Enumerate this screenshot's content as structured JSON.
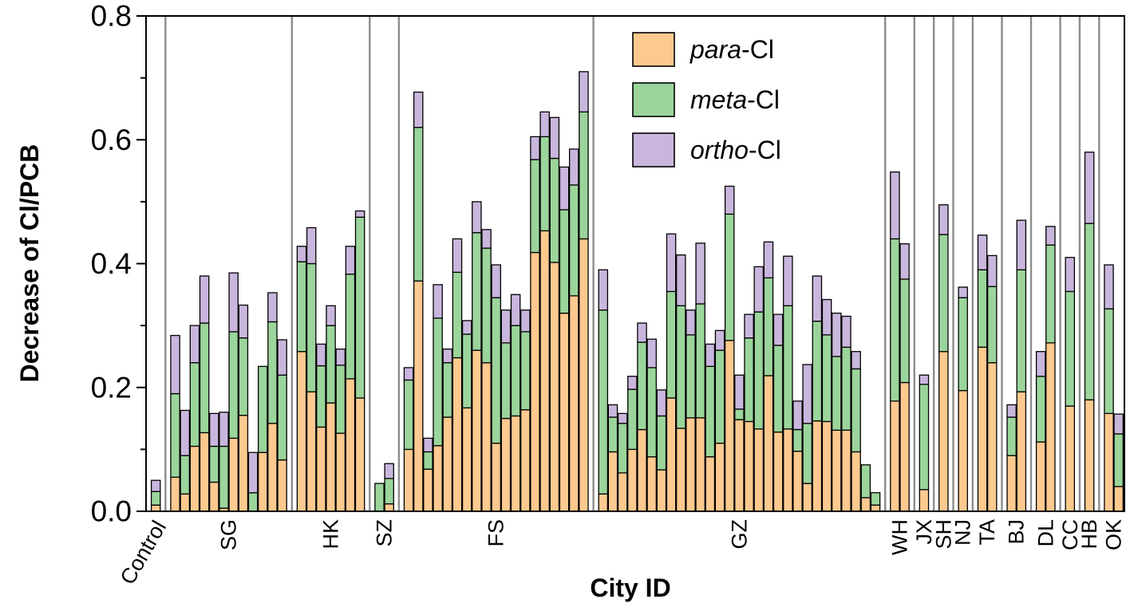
{
  "chart_data": {
    "type": "bar",
    "stacked": true,
    "xlabel": "City ID",
    "ylabel": "Decrease of Cl/PCB",
    "ylim": [
      0,
      0.8
    ],
    "yticks": [
      "0.0",
      "0.2",
      "0.4",
      "0.6",
      "0.8"
    ],
    "colors": {
      "para": "#fcc98f",
      "meta": "#9bd59b",
      "ortho": "#c9b6dd"
    },
    "legend": [
      {
        "key": "para",
        "italic": "para",
        "suffix": "-Cl"
      },
      {
        "key": "meta",
        "italic": "meta",
        "suffix": "-Cl"
      },
      {
        "key": "ortho",
        "italic": "ortho",
        "suffix": "-Cl"
      }
    ],
    "groups": [
      {
        "name": "Control",
        "bars": [
          [
            0.01,
            0.032,
            0.05
          ]
        ]
      },
      {
        "name": "SG",
        "bars": [
          [
            0.055,
            0.19,
            0.284
          ],
          [
            0.028,
            0.09,
            0.163
          ],
          [
            0.105,
            0.24,
            0.3
          ],
          [
            0.127,
            0.304,
            0.38
          ],
          [
            0.047,
            0.105,
            0.158
          ],
          [
            0.005,
            0.105,
            0.16
          ],
          [
            0.118,
            0.29,
            0.385
          ],
          [
            0.155,
            0.28,
            0.333
          ],
          [
            0.0,
            0.03,
            0.095
          ],
          [
            0.095,
            0.234,
            0.234
          ],
          [
            0.142,
            0.306,
            0.353
          ],
          [
            0.083,
            0.22,
            0.277
          ]
        ]
      },
      {
        "name": "HK",
        "bars": [
          [
            0.258,
            0.403,
            0.428
          ],
          [
            0.193,
            0.4,
            0.458
          ],
          [
            0.136,
            0.235,
            0.27
          ],
          [
            0.175,
            0.3,
            0.332
          ],
          [
            0.126,
            0.236,
            0.262
          ],
          [
            0.214,
            0.383,
            0.428
          ],
          [
            0.183,
            0.475,
            0.485
          ]
        ]
      },
      {
        "name": "SZ",
        "bars": [
          [
            0.0,
            0.045,
            0.045
          ],
          [
            0.012,
            0.053,
            0.077
          ]
        ]
      },
      {
        "name": "FS",
        "bars": [
          [
            0.1,
            0.212,
            0.232
          ],
          [
            0.372,
            0.62,
            0.677
          ],
          [
            0.068,
            0.096,
            0.118
          ],
          [
            0.106,
            0.312,
            0.366
          ],
          [
            0.152,
            0.24,
            0.262
          ],
          [
            0.248,
            0.386,
            0.44
          ],
          [
            0.167,
            0.286,
            0.308
          ],
          [
            0.26,
            0.45,
            0.5
          ],
          [
            0.24,
            0.425,
            0.455
          ],
          [
            0.11,
            0.345,
            0.398
          ],
          [
            0.15,
            0.272,
            0.325
          ],
          [
            0.154,
            0.3,
            0.35
          ],
          [
            0.164,
            0.29,
            0.325
          ],
          [
            0.418,
            0.568,
            0.605
          ],
          [
            0.453,
            0.605,
            0.645
          ],
          [
            0.402,
            0.57,
            0.636
          ],
          [
            0.32,
            0.487,
            0.556
          ],
          [
            0.348,
            0.527,
            0.585
          ],
          [
            0.44,
            0.645,
            0.71
          ]
        ]
      },
      {
        "name": "GZ",
        "bars": [
          [
            0.028,
            0.325,
            0.39
          ],
          [
            0.096,
            0.152,
            0.172
          ],
          [
            0.062,
            0.142,
            0.158
          ],
          [
            0.1,
            0.197,
            0.218
          ],
          [
            0.132,
            0.273,
            0.304
          ],
          [
            0.088,
            0.232,
            0.278
          ],
          [
            0.067,
            0.154,
            0.196
          ],
          [
            0.183,
            0.355,
            0.448
          ],
          [
            0.134,
            0.332,
            0.414
          ],
          [
            0.151,
            0.285,
            0.325
          ],
          [
            0.151,
            0.335,
            0.433
          ],
          [
            0.088,
            0.234,
            0.27
          ],
          [
            0.11,
            0.26,
            0.292
          ],
          [
            0.276,
            0.48,
            0.525
          ],
          [
            0.148,
            0.165,
            0.22
          ],
          [
            0.145,
            0.28,
            0.318
          ],
          [
            0.133,
            0.322,
            0.395
          ],
          [
            0.219,
            0.377,
            0.435
          ],
          [
            0.128,
            0.268,
            0.318
          ],
          [
            0.133,
            0.332,
            0.412
          ],
          [
            0.097,
            0.132,
            0.178
          ],
          [
            0.045,
            0.142,
            0.237
          ],
          [
            0.146,
            0.307,
            0.38
          ],
          [
            0.145,
            0.285,
            0.342
          ],
          [
            0.131,
            0.25,
            0.32
          ],
          [
            0.131,
            0.265,
            0.315
          ],
          [
            0.096,
            0.23,
            0.258
          ],
          [
            0.022,
            0.075,
            0.075
          ],
          [
            0.01,
            0.03,
            0.03
          ]
        ]
      },
      {
        "name": "WH",
        "bars": [
          [
            0.178,
            0.44,
            0.548
          ],
          [
            0.208,
            0.375,
            0.432
          ]
        ]
      },
      {
        "name": "JX",
        "bars": [
          [
            0.035,
            0.205,
            0.22
          ]
        ]
      },
      {
        "name": "SH",
        "bars": [
          [
            0.258,
            0.447,
            0.495
          ]
        ]
      },
      {
        "name": "NJ",
        "bars": [
          [
            0.195,
            0.345,
            0.362
          ]
        ]
      },
      {
        "name": "TA",
        "bars": [
          [
            0.265,
            0.39,
            0.446
          ],
          [
            0.24,
            0.363,
            0.413
          ]
        ]
      },
      {
        "name": "BJ",
        "bars": [
          [
            0.09,
            0.152,
            0.172
          ],
          [
            0.193,
            0.39,
            0.47
          ]
        ]
      },
      {
        "name": "DL",
        "bars": [
          [
            0.112,
            0.218,
            0.258
          ],
          [
            0.272,
            0.43,
            0.46
          ]
        ]
      },
      {
        "name": "CC",
        "bars": [
          [
            0.17,
            0.355,
            0.41
          ]
        ]
      },
      {
        "name": "HB",
        "bars": [
          [
            0.18,
            0.465,
            0.58
          ]
        ]
      },
      {
        "name": "OK",
        "bars": [
          [
            0.158,
            0.327,
            0.398
          ],
          [
            0.04,
            0.125,
            0.157
          ]
        ]
      }
    ]
  }
}
